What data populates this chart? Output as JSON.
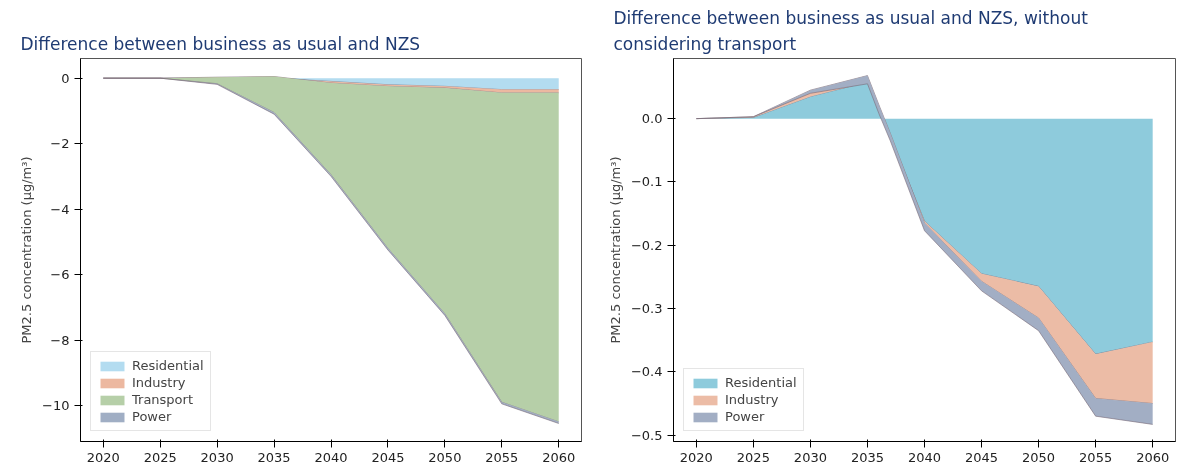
{
  "chart_data": [
    {
      "type": "area",
      "stacked": true,
      "title": "Difference between business as usual and NZS",
      "ylabel": "PM2.5 concentration (µg/m³)",
      "x": [
        2020,
        2025,
        2030,
        2035,
        2040,
        2045,
        2050,
        2055,
        2060
      ],
      "series": [
        {
          "name": "Residential",
          "color": "#b3dcf0",
          "values": [
            0,
            0,
            0,
            0,
            -0.1,
            -0.2,
            -0.25,
            -0.35,
            -0.35
          ]
        },
        {
          "name": "Industry",
          "color": "#ecb8a0",
          "values": [
            0,
            0,
            0.03,
            0.05,
            -0.05,
            -0.05,
            -0.05,
            -0.1,
            -0.1
          ]
        },
        {
          "name": "Transport",
          "color": "#b6cfa8",
          "values": [
            0,
            0,
            -0.2,
            -1.1,
            -2.8,
            -4.95,
            -6.9,
            -9.45,
            -10.05
          ]
        },
        {
          "name": "Power",
          "color": "#a0aec4",
          "values": [
            0,
            0,
            -0.02,
            -0.05,
            -0.05,
            -0.05,
            -0.05,
            -0.05,
            -0.05
          ]
        }
      ],
      "xlim": [
        2018,
        2062
      ],
      "xticks": [
        2020,
        2025,
        2030,
        2035,
        2040,
        2045,
        2050,
        2055,
        2060
      ],
      "ylim": [
        -11.1,
        0.6
      ],
      "yticks": [
        -10,
        -8,
        -6,
        -4,
        -2,
        0
      ],
      "legend": "bottom left",
      "grid": false
    },
    {
      "type": "area",
      "stacked": true,
      "title": "Difference between business as usual and NZS, without considering transport",
      "ylabel": "PM2.5 concentration (µg/m³)",
      "x": [
        2020,
        2025,
        2030,
        2035,
        2036,
        2037,
        2040,
        2045,
        2050,
        2055,
        2060
      ],
      "series": [
        {
          "name": "Residential",
          "color": "#8ecbdc",
          "values": [
            0,
            0.002,
            0.035,
            0.058,
            0.015,
            -0.028,
            -0.162,
            -0.245,
            -0.265,
            -0.372,
            -0.353
          ]
        },
        {
          "name": "Industry",
          "color": "#ecbca6",
          "values": [
            0,
            0.001,
            0.01,
            0.01,
            0.007,
            0.005,
            -0.003,
            -0.012,
            -0.05,
            -0.07,
            -0.097
          ]
        },
        {
          "name": "Power",
          "color": "#a2aec4",
          "values": [
            0,
            0,
            -0.005,
            -0.013,
            -0.014,
            -0.012,
            -0.012,
            -0.015,
            -0.02,
            -0.028,
            -0.033
          ]
        }
      ],
      "xlim": [
        2018,
        2062
      ],
      "xticks": [
        2020,
        2025,
        2030,
        2035,
        2040,
        2045,
        2050,
        2055,
        2060
      ],
      "ylim": [
        -0.51,
        0.095
      ],
      "yticks": [
        -0.5,
        -0.4,
        -0.3,
        -0.2,
        -0.1,
        {
          "value": 0,
          "label": "0.0"
        }
      ],
      "legend": "bottom left",
      "grid": false
    }
  ]
}
